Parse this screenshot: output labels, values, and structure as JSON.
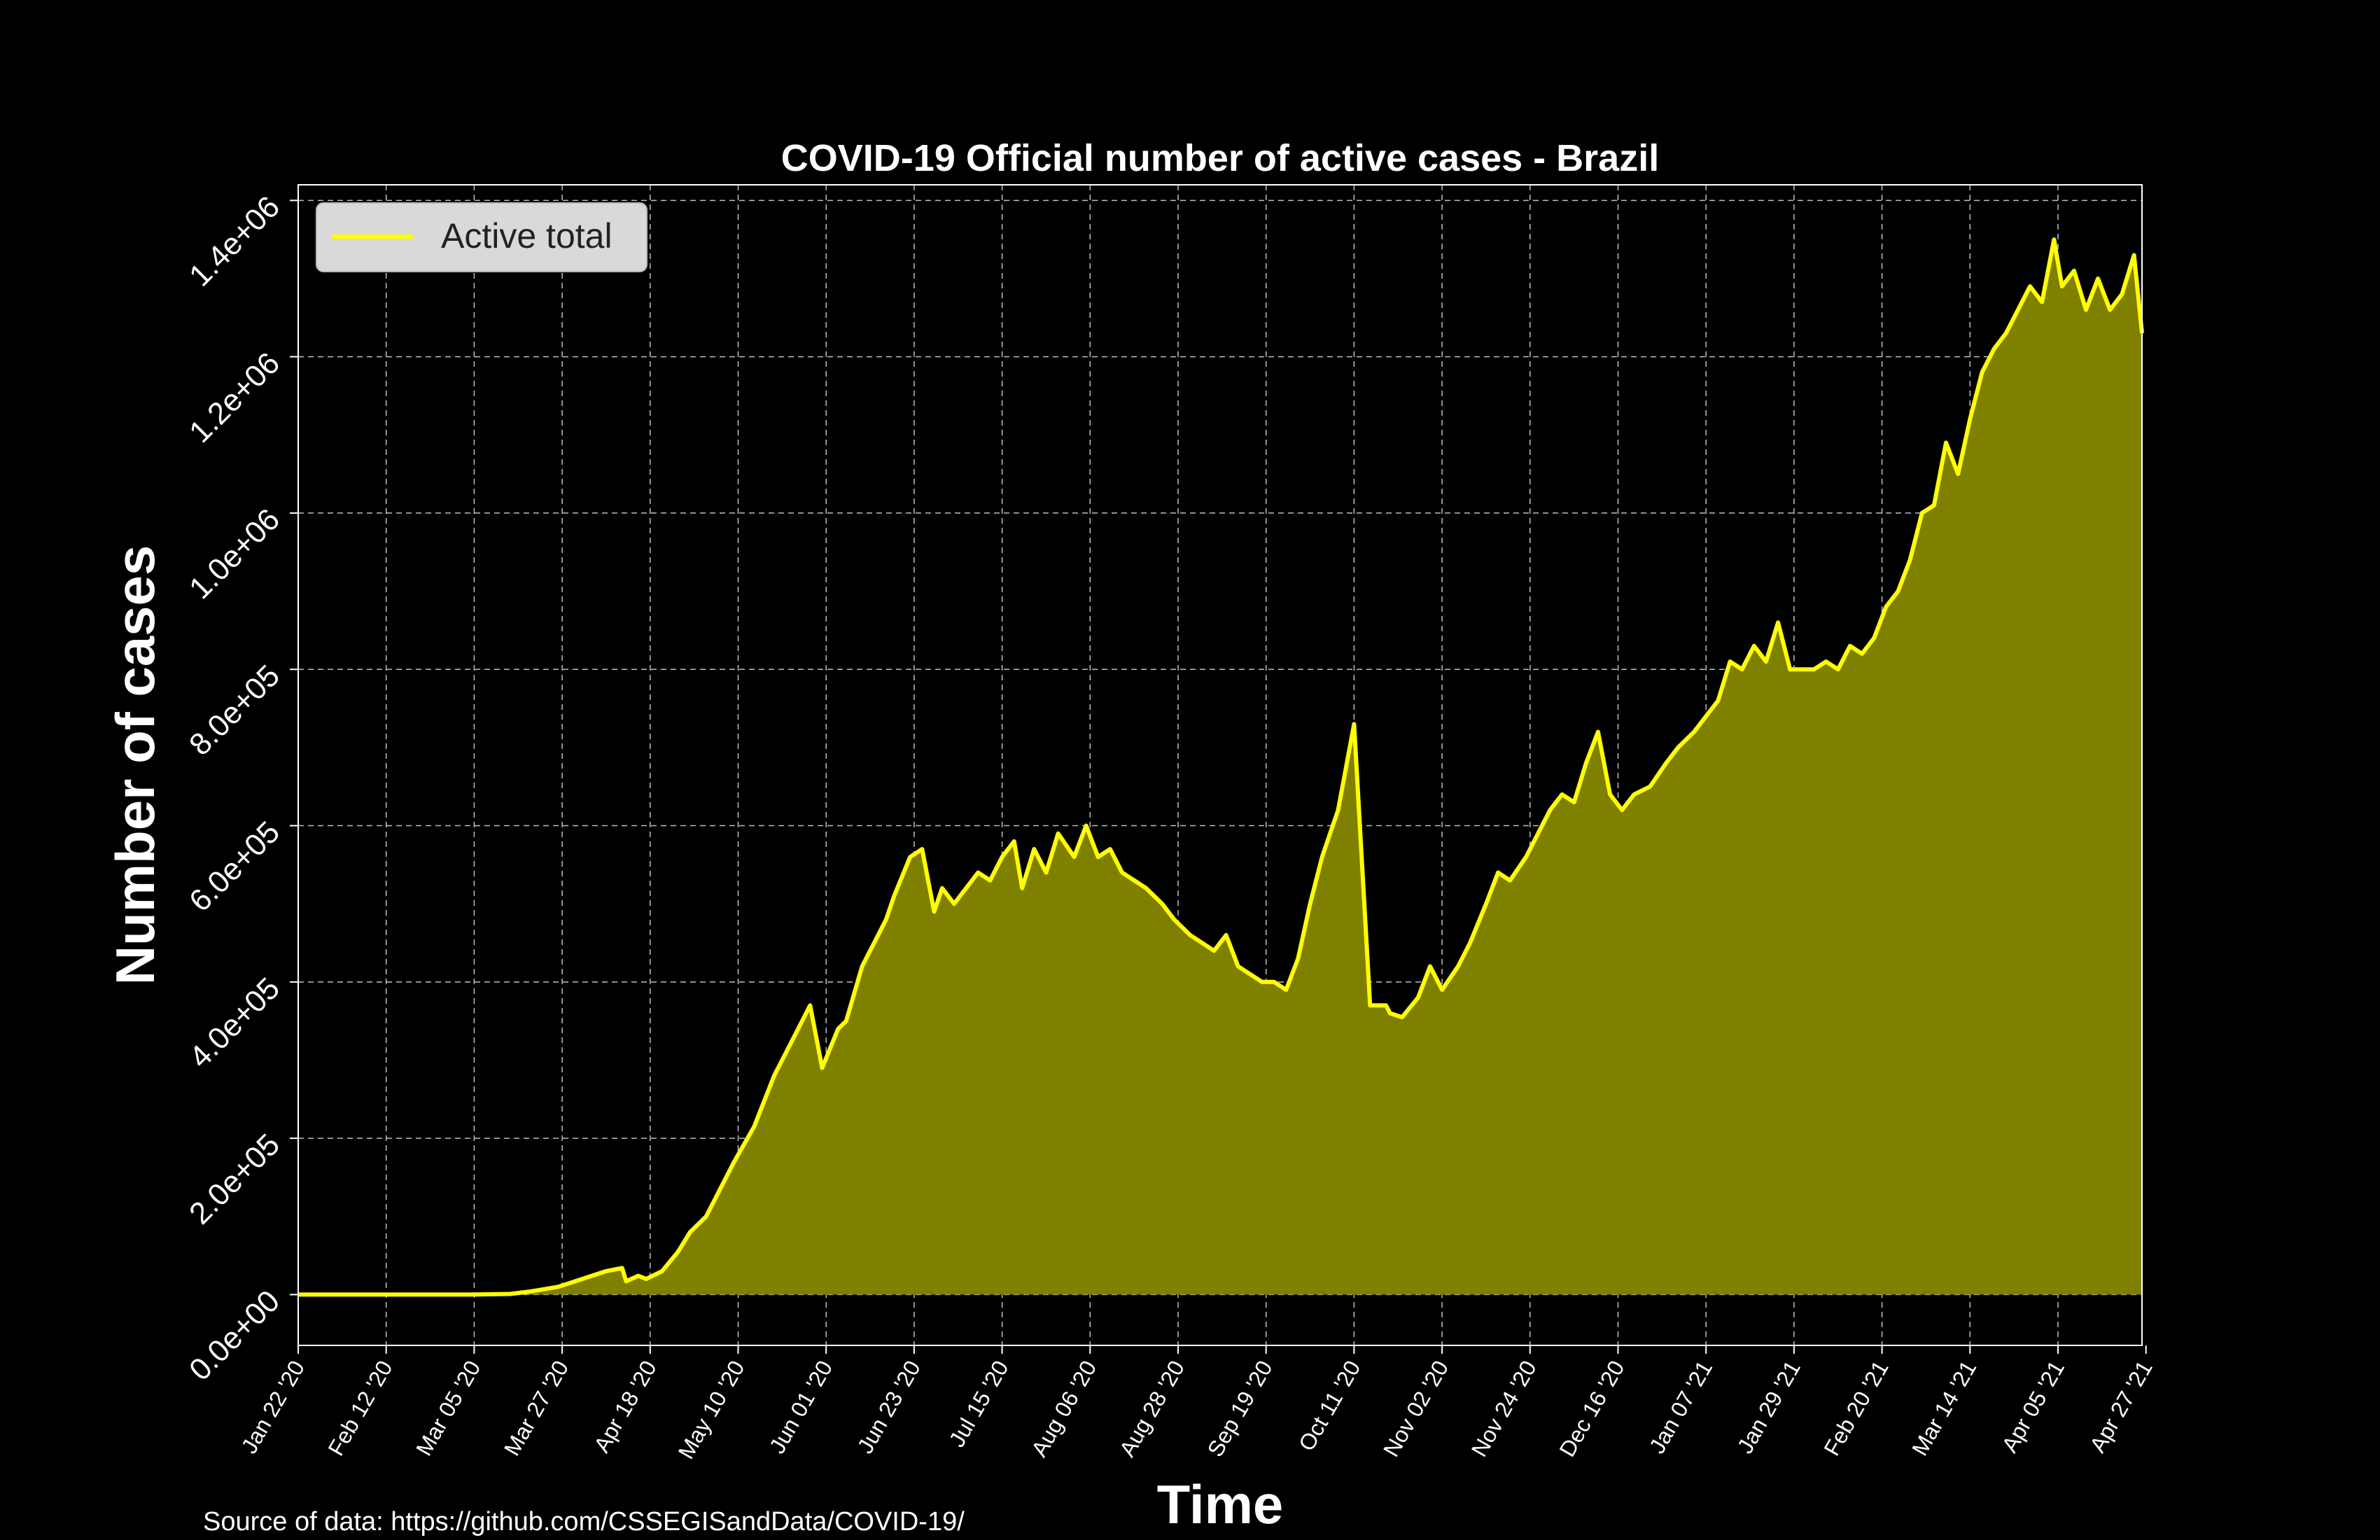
{
  "colors": {
    "background": "#000000",
    "line": "#ffff00",
    "fill": "#808000",
    "grid": "#ffffff",
    "text": "#ffffff",
    "legend_bg": "#d9d9d9"
  },
  "source_note": "Source of data: https://github.com/CSSEGISandData/COVID-19/",
  "chart_data": {
    "type": "area",
    "title": "COVID-19 Official number of active cases - Brazil",
    "xlabel": "Time",
    "ylabel": "Number of cases",
    "grid": true,
    "legend_position": "top-left",
    "xlim": [
      "2020-01-22",
      "2021-04-27"
    ],
    "ylim": [
      -65000,
      1420000
    ],
    "x_ticks": [
      "Jan 22 '20",
      "Feb 12 '20",
      "Mar 05 '20",
      "Mar 27 '20",
      "Apr 18 '20",
      "May 10 '20",
      "Jun 01 '20",
      "Jun 23 '20",
      "Jul 15 '20",
      "Aug 06 '20",
      "Aug 28 '20",
      "Sep 19 '20",
      "Oct 11 '20",
      "Nov 02 '20",
      "Nov 24 '20",
      "Dec 16 '20",
      "Jan 07 '21",
      "Jan 29 '21",
      "Feb 20 '21",
      "Mar 14 '21",
      "Apr 05 '21",
      "Apr 27 '21"
    ],
    "y_ticks": [
      "0.0e+00",
      "2.0e+05",
      "4.0e+05",
      "6.0e+05",
      "8.0e+05",
      "1.0e+06",
      "1.2e+06",
      "1.4e+06"
    ],
    "y_tick_values": [
      0,
      200000,
      400000,
      600000,
      800000,
      1000000,
      1200000,
      1400000
    ],
    "series": [
      {
        "name": "Active total",
        "x": [
          "2020-01-22",
          "2020-02-26",
          "2020-03-05",
          "2020-03-15",
          "2020-03-20",
          "2020-03-27",
          "2020-04-02",
          "2020-04-08",
          "2020-04-12",
          "2020-04-13",
          "2020-04-16",
          "2020-04-18",
          "2020-04-22",
          "2020-04-26",
          "2020-04-29",
          "2020-05-03",
          "2020-05-06",
          "2020-05-10",
          "2020-05-15",
          "2020-05-20",
          "2020-05-25",
          "2020-05-29",
          "2020-06-01",
          "2020-06-05",
          "2020-06-07",
          "2020-06-11",
          "2020-06-14",
          "2020-06-17",
          "2020-06-19",
          "2020-06-23",
          "2020-06-26",
          "2020-06-29",
          "2020-07-01",
          "2020-07-04",
          "2020-07-07",
          "2020-07-10",
          "2020-07-13",
          "2020-07-16",
          "2020-07-19",
          "2020-07-21",
          "2020-07-24",
          "2020-07-27",
          "2020-07-30",
          "2020-08-03",
          "2020-08-06",
          "2020-08-09",
          "2020-08-12",
          "2020-08-15",
          "2020-08-18",
          "2020-08-21",
          "2020-08-25",
          "2020-08-28",
          "2020-09-01",
          "2020-09-04",
          "2020-09-07",
          "2020-09-10",
          "2020-09-13",
          "2020-09-16",
          "2020-09-19",
          "2020-09-22",
          "2020-09-25",
          "2020-09-28",
          "2020-10-01",
          "2020-10-04",
          "2020-10-08",
          "2020-10-12",
          "2020-10-16",
          "2020-10-20",
          "2020-10-21",
          "2020-10-24",
          "2020-10-28",
          "2020-10-31",
          "2020-11-03",
          "2020-11-07",
          "2020-11-10",
          "2020-11-14",
          "2020-11-17",
          "2020-11-20",
          "2020-11-24",
          "2020-11-27",
          "2020-11-30",
          "2020-12-03",
          "2020-12-06",
          "2020-12-09",
          "2020-12-12",
          "2020-12-15",
          "2020-12-18",
          "2020-12-21",
          "2020-12-25",
          "2020-12-29",
          "2021-01-01",
          "2021-01-05",
          "2021-01-08",
          "2021-01-11",
          "2021-01-14",
          "2021-01-17",
          "2021-01-20",
          "2021-01-23",
          "2021-01-26",
          "2021-01-29",
          "2021-02-01",
          "2021-02-04",
          "2021-02-07",
          "2021-02-10",
          "2021-02-13",
          "2021-02-16",
          "2021-02-19",
          "2021-02-22",
          "2021-02-25",
          "2021-02-28",
          "2021-03-03",
          "2021-03-06",
          "2021-03-09",
          "2021-03-12",
          "2021-03-15",
          "2021-03-18",
          "2021-03-21",
          "2021-03-24",
          "2021-03-27",
          "2021-03-30",
          "2021-04-02",
          "2021-04-05",
          "2021-04-07",
          "2021-04-10",
          "2021-04-13",
          "2021-04-16",
          "2021-04-19",
          "2021-04-22",
          "2021-04-25",
          "2021-04-27"
        ],
        "y": [
          0,
          0,
          0,
          800,
          4000,
          10000,
          20000,
          30000,
          34000,
          17000,
          24000,
          20000,
          30000,
          55000,
          80000,
          100000,
          130000,
          170000,
          215000,
          280000,
          330000,
          370000,
          290000,
          340000,
          350000,
          420000,
          450000,
          480000,
          510000,
          560000,
          570000,
          490000,
          520000,
          500000,
          520000,
          540000,
          530000,
          560000,
          580000,
          520000,
          570000,
          540000,
          590000,
          560000,
          600000,
          560000,
          570000,
          540000,
          530000,
          520000,
          500000,
          480000,
          460000,
          450000,
          440000,
          460000,
          420000,
          410000,
          400000,
          400000,
          390000,
          430000,
          500000,
          560000,
          620000,
          730000,
          370000,
          370000,
          360000,
          355000,
          380000,
          420000,
          390000,
          420000,
          450000,
          500000,
          540000,
          530000,
          560000,
          590000,
          620000,
          640000,
          630000,
          680000,
          720000,
          640000,
          620000,
          640000,
          650000,
          680000,
          700000,
          720000,
          740000,
          760000,
          810000,
          800000,
          830000,
          810000,
          860000,
          800000,
          800000,
          800000,
          810000,
          800000,
          830000,
          820000,
          840000,
          880000,
          900000,
          940000,
          1000000,
          1010000,
          1090000,
          1050000,
          1120000,
          1180000,
          1210000,
          1230000,
          1260000,
          1290000,
          1270000,
          1350000,
          1290000,
          1310000,
          1260000,
          1300000,
          1260000,
          1280000,
          1330000,
          1230000
        ]
      }
    ]
  }
}
